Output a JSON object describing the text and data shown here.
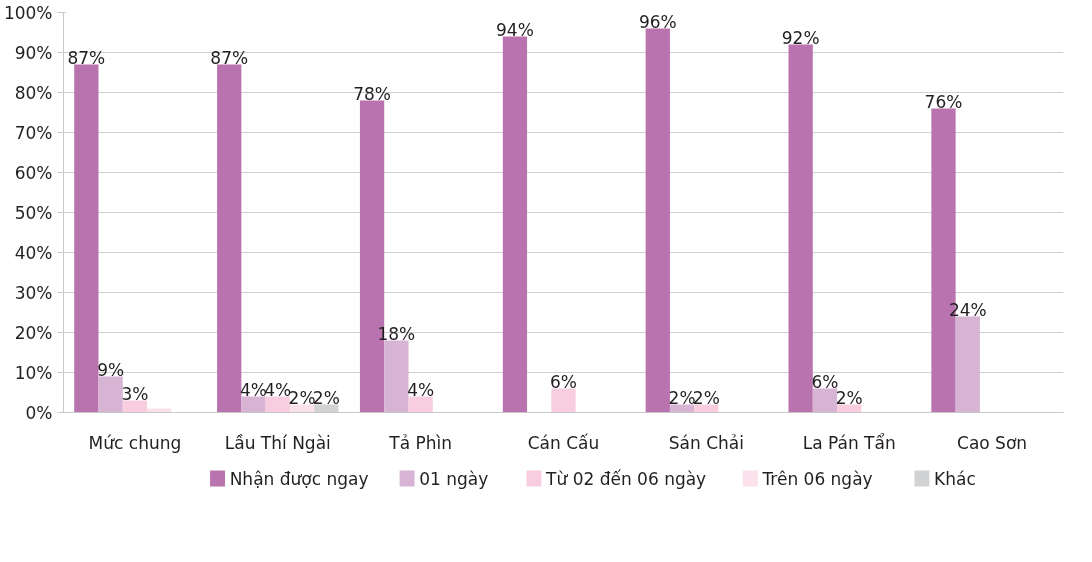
{
  "chart_data": {
    "type": "bar",
    "categories": [
      "Mức chung",
      "Lầu Thí Ngài",
      "Tả Phìn",
      "Cán Cấu",
      "Sán Chải",
      "La Pán Tẩn",
      "Cao Sơn"
    ],
    "series": [
      {
        "name": "Nhận được ngay",
        "color": "#b973ae",
        "values": [
          87,
          87,
          78,
          94,
          96,
          92,
          76
        ],
        "value_labels": [
          "87%",
          "87%",
          "78%",
          "94%",
          "96%",
          "92%",
          "76%"
        ]
      },
      {
        "name": "01 ngày",
        "color": "#d7b3d4",
        "values": [
          9,
          4,
          18,
          null,
          2,
          6,
          24
        ],
        "value_labels": [
          "9%",
          "4%",
          "18%",
          null,
          "2%",
          "6%",
          "24%"
        ]
      },
      {
        "name": "Từ 02 đến 06 ngày",
        "color": "#f8cde0",
        "values": [
          3,
          4,
          4,
          6,
          2,
          2,
          null
        ],
        "value_labels": [
          "3%",
          "4%",
          "4%",
          "6%",
          "2%",
          "2%",
          null
        ]
      },
      {
        "name": "Trên 06 ngày",
        "color": "#fbe1ec",
        "values": [
          1,
          2,
          null,
          null,
          null,
          null,
          null
        ],
        "value_labels": [
          null,
          "2%",
          null,
          null,
          null,
          null,
          null
        ]
      },
      {
        "name": "Khác",
        "color": "#d1d2d4",
        "values": [
          null,
          2,
          null,
          null,
          null,
          null,
          null
        ],
        "value_labels": [
          null,
          "2%",
          null,
          null,
          null,
          null,
          null
        ]
      }
    ],
    "ylim": [
      0,
      100
    ],
    "yticks": [
      {
        "value": 0,
        "label": "0%"
      },
      {
        "value": 10,
        "label": "10%"
      },
      {
        "value": 20,
        "label": "20%"
      },
      {
        "value": 30,
        "label": "30%"
      },
      {
        "value": 40,
        "label": "40%"
      },
      {
        "value": 50,
        "label": "50%"
      },
      {
        "value": 60,
        "label": "60%"
      },
      {
        "value": 70,
        "label": "70%"
      },
      {
        "value": 80,
        "label": "80%"
      },
      {
        "value": 90,
        "label": "90%"
      },
      {
        "value": 100,
        "label": "100%"
      }
    ],
    "grid": "y",
    "legend": "bottom"
  }
}
